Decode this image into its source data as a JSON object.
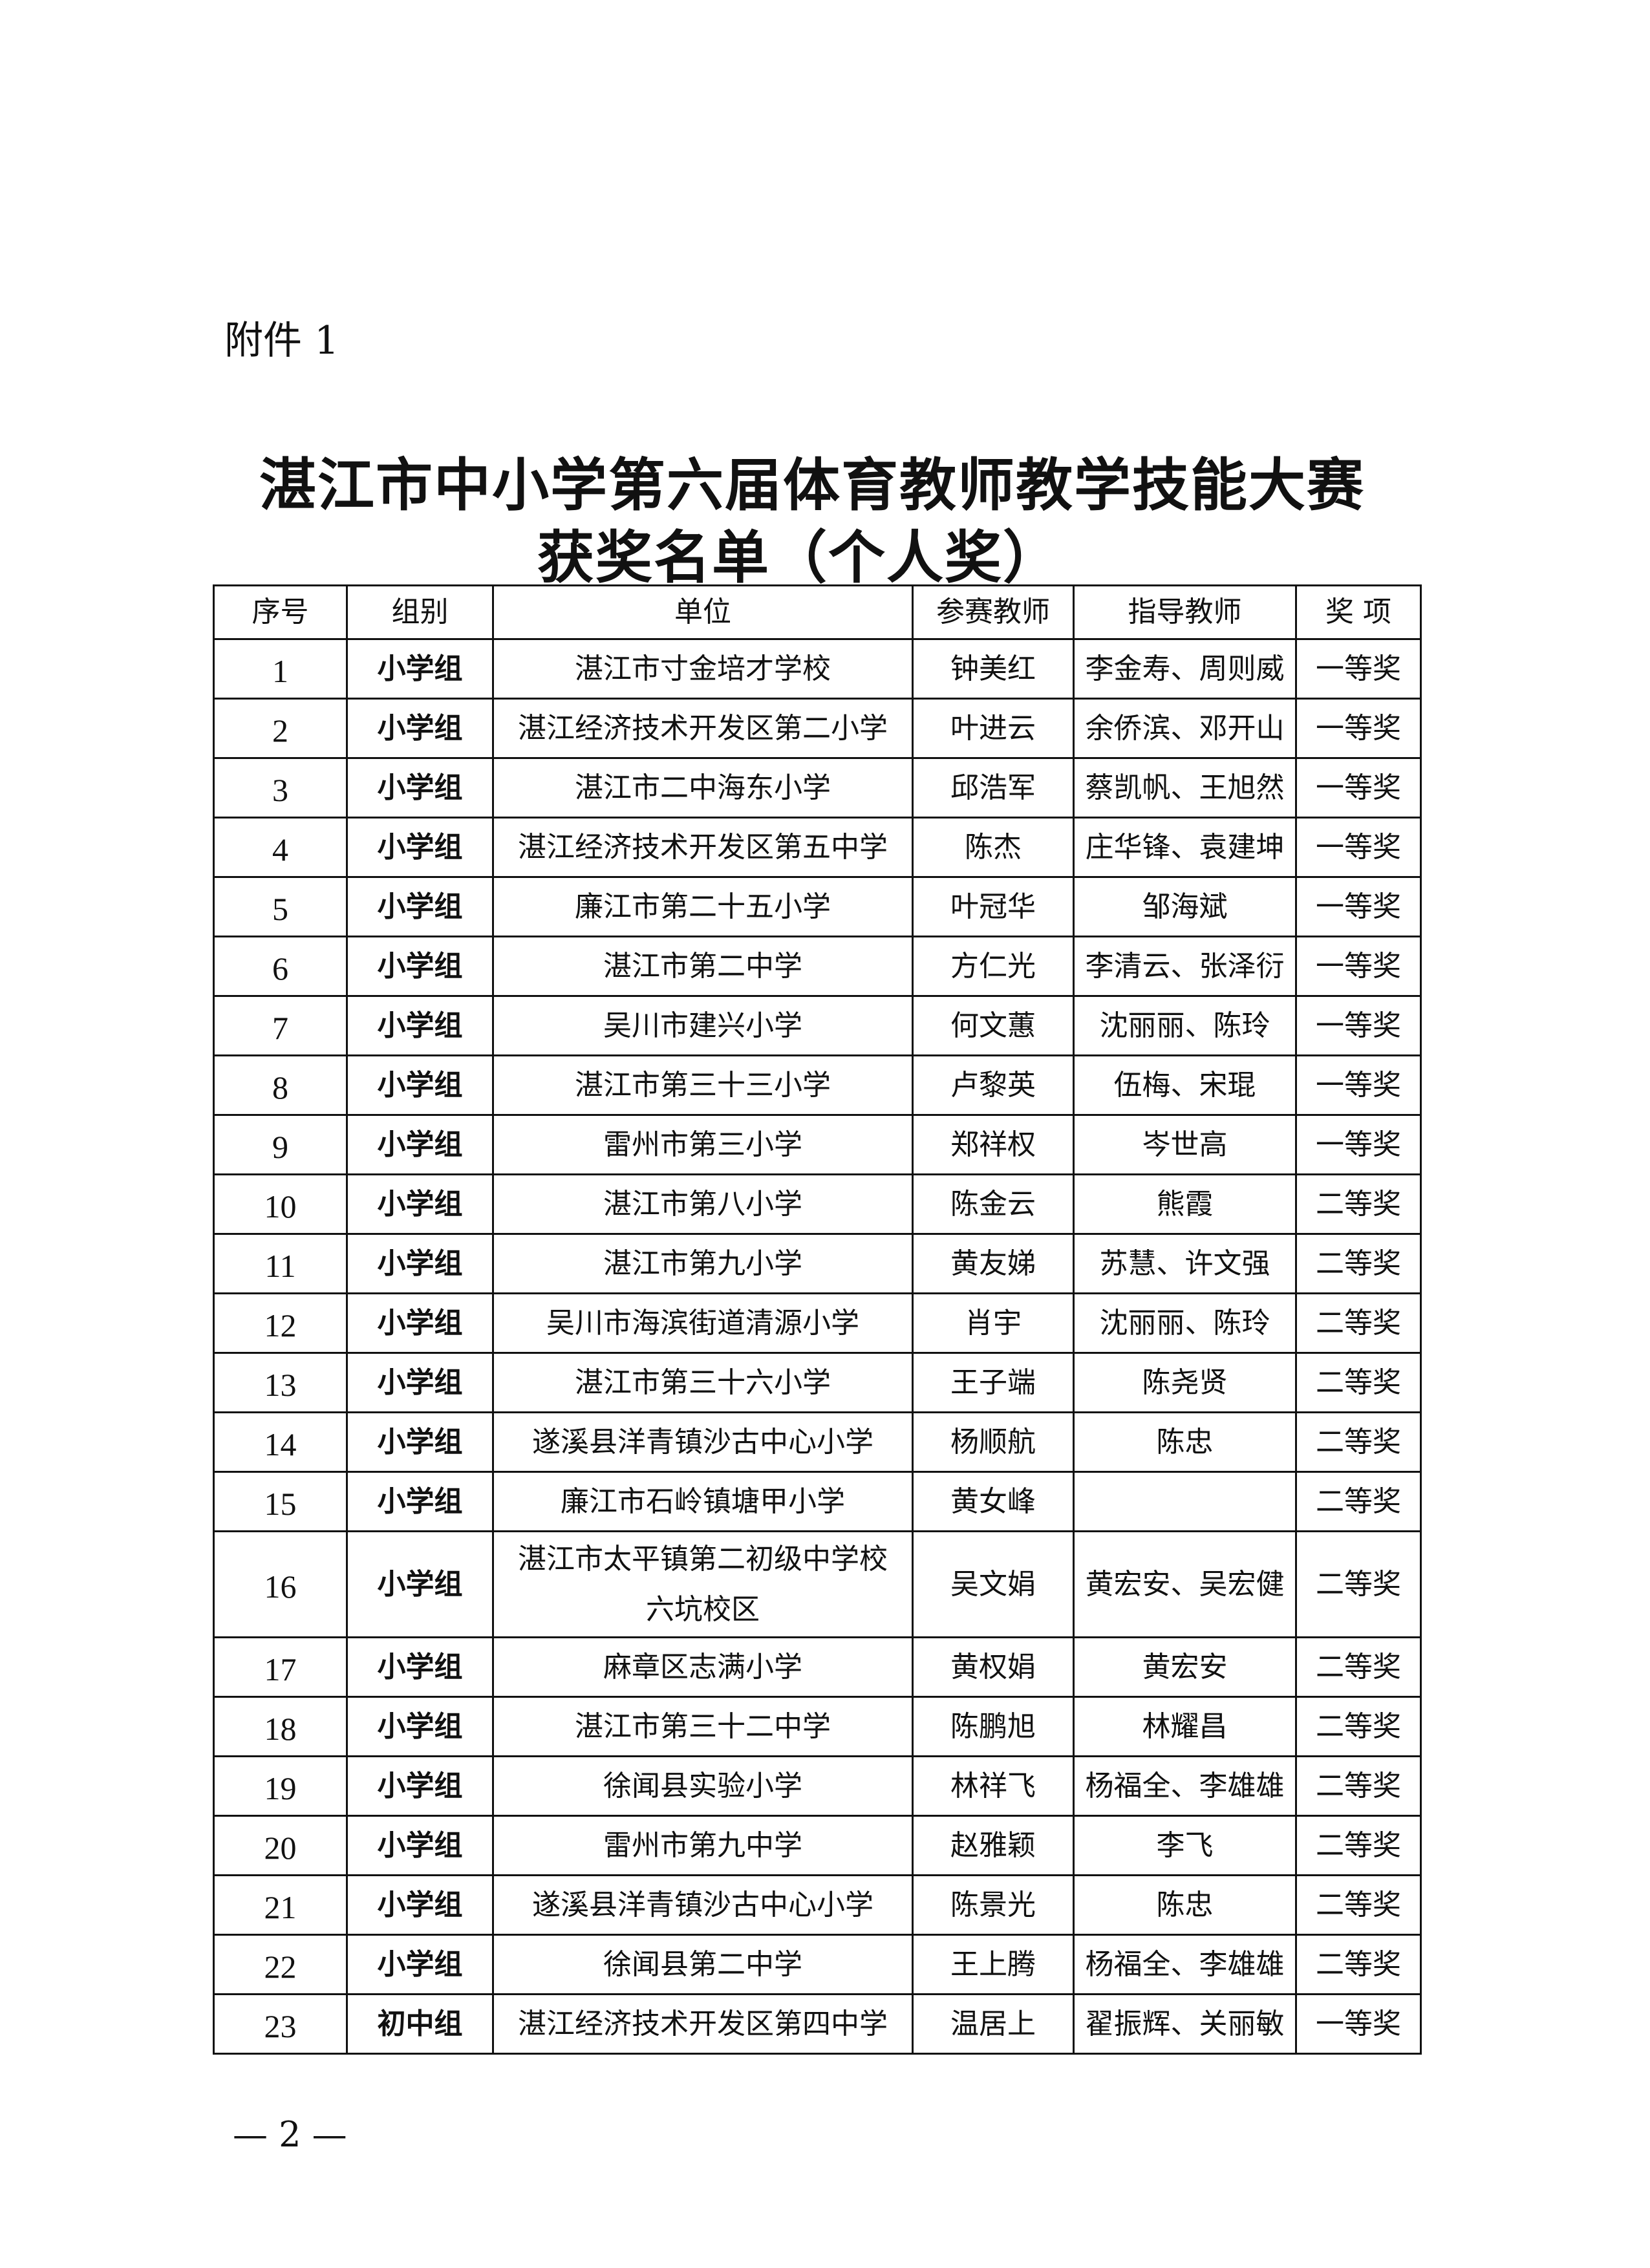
{
  "attachment_label": "附件 1",
  "title_line1": "湛江市中小学第六届体育教师教学技能大赛",
  "title_line2": "获奖名单（个人奖）",
  "table": {
    "headers": [
      "序号",
      "组别",
      "单位",
      "参赛教师",
      "指导教师",
      "奖  项"
    ],
    "rows": [
      [
        "1",
        "小学组",
        "湛江市寸金培才学校",
        "钟美红",
        "李金寿、周则威",
        "一等奖"
      ],
      [
        "2",
        "小学组",
        "湛江经济技术开发区第二小学",
        "叶进云",
        "余侨滨、邓开山",
        "一等奖"
      ],
      [
        "3",
        "小学组",
        "湛江市二中海东小学",
        "邱浩军",
        "蔡凯帆、王旭然",
        "一等奖"
      ],
      [
        "4",
        "小学组",
        "湛江经济技术开发区第五中学",
        "陈杰",
        "庄华锋、袁建坤",
        "一等奖"
      ],
      [
        "5",
        "小学组",
        "廉江市第二十五小学",
        "叶冠华",
        "邹海斌",
        "一等奖"
      ],
      [
        "6",
        "小学组",
        "湛江市第二中学",
        "方仁光",
        "李清云、张泽衍",
        "一等奖"
      ],
      [
        "7",
        "小学组",
        "吴川市建兴小学",
        "何文蕙",
        "沈丽丽、陈玲",
        "一等奖"
      ],
      [
        "8",
        "小学组",
        "湛江市第三十三小学",
        "卢黎英",
        "伍梅、宋琨",
        "一等奖"
      ],
      [
        "9",
        "小学组",
        "雷州市第三小学",
        "郑祥权",
        "岑世高",
        "一等奖"
      ],
      [
        "10",
        "小学组",
        "湛江市第八小学",
        "陈金云",
        "熊霞",
        "二等奖"
      ],
      [
        "11",
        "小学组",
        "湛江市第九小学",
        "黄友娣",
        "苏慧、许文强",
        "二等奖"
      ],
      [
        "12",
        "小学组",
        "吴川市海滨街道清源小学",
        "肖宇",
        "沈丽丽、陈玲",
        "二等奖"
      ],
      [
        "13",
        "小学组",
        "湛江市第三十六小学",
        "王子端",
        "陈尧贤",
        "二等奖"
      ],
      [
        "14",
        "小学组",
        "遂溪县洋青镇沙古中心小学",
        "杨顺航",
        "陈忠",
        "二等奖"
      ],
      [
        "15",
        "小学组",
        "廉江市石岭镇塘甲小学",
        "黄女峰",
        "",
        "二等奖"
      ],
      [
        "16",
        "小学组",
        "湛江市太平镇第二初级中学校六坑校区",
        "吴文娟",
        "黄宏安、吴宏健",
        "二等奖"
      ],
      [
        "17",
        "小学组",
        "麻章区志满小学",
        "黄权娟",
        "黄宏安",
        "二等奖"
      ],
      [
        "18",
        "小学组",
        "湛江市第三十二中学",
        "陈鹏旭",
        "林耀昌",
        "二等奖"
      ],
      [
        "19",
        "小学组",
        "徐闻县实验小学",
        "林祥飞",
        "杨福全、李雄雄",
        "二等奖"
      ],
      [
        "20",
        "小学组",
        "雷州市第九中学",
        "赵雅颖",
        "李飞",
        "二等奖"
      ],
      [
        "21",
        "小学组",
        "遂溪县洋青镇沙古中心小学",
        "陈景光",
        "陈忠",
        "二等奖"
      ],
      [
        "22",
        "小学组",
        "徐闻县第二中学",
        "王上腾",
        "杨福全、李雄雄",
        "二等奖"
      ],
      [
        "23",
        "初中组",
        "湛江经济技术开发区第四中学",
        "温居上",
        "翟振辉、关丽敏",
        "一等奖"
      ]
    ]
  },
  "page_number": "— 2 —"
}
